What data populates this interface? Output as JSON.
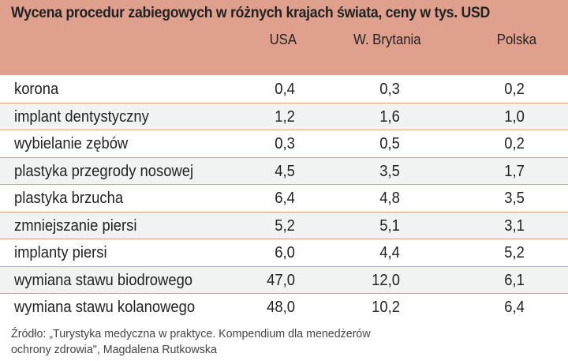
{
  "table": {
    "title": "Wycena procedur zabiegowych w różnych krajach świata, ceny w tys. USD",
    "columns": {
      "usa": "USA",
      "uk": "W. Brytania",
      "pl": "Polska"
    },
    "rows": [
      {
        "name": "korona",
        "usa": "0,4",
        "uk": "0,3",
        "pl": "0,2"
      },
      {
        "name": "implant dentystyczny",
        "usa": "1,2",
        "uk": "1,6",
        "pl": "1,0"
      },
      {
        "name": "wybielanie zębów",
        "usa": "0,3",
        "uk": "0,5",
        "pl": "0,2"
      },
      {
        "name": "plastyka przegrody nosowej",
        "usa": "4,5",
        "uk": "3,5",
        "pl": "1,7"
      },
      {
        "name": "plastyka brzucha",
        "usa": "6,4",
        "uk": "4,8",
        "pl": "3,5"
      },
      {
        "name": "zmniejszanie piersi",
        "usa": "5,2",
        "uk": "5,1",
        "pl": "3,1"
      },
      {
        "name": "implanty piersi",
        "usa": "6,0",
        "uk": "4,4",
        "pl": "5,2"
      },
      {
        "name": "wymiana stawu biodrowego",
        "usa": "47,0",
        "uk": "12,0",
        "pl": "6,1"
      },
      {
        "name": "wymiana stawu kolanowego",
        "usa": "48,0",
        "uk": "10,2",
        "pl": "6,4"
      }
    ],
    "source_line1": "Źródło: „Turystyka medyczna w praktyce. Kompendium dla menedżerów",
    "source_line2": "ochrony zdrowia\", Magdalena Rutkowska"
  },
  "colors": {
    "header_bg": "#dfa08d",
    "alt_row_bg": "#f1f2f2",
    "divider": "#dfa08d"
  }
}
